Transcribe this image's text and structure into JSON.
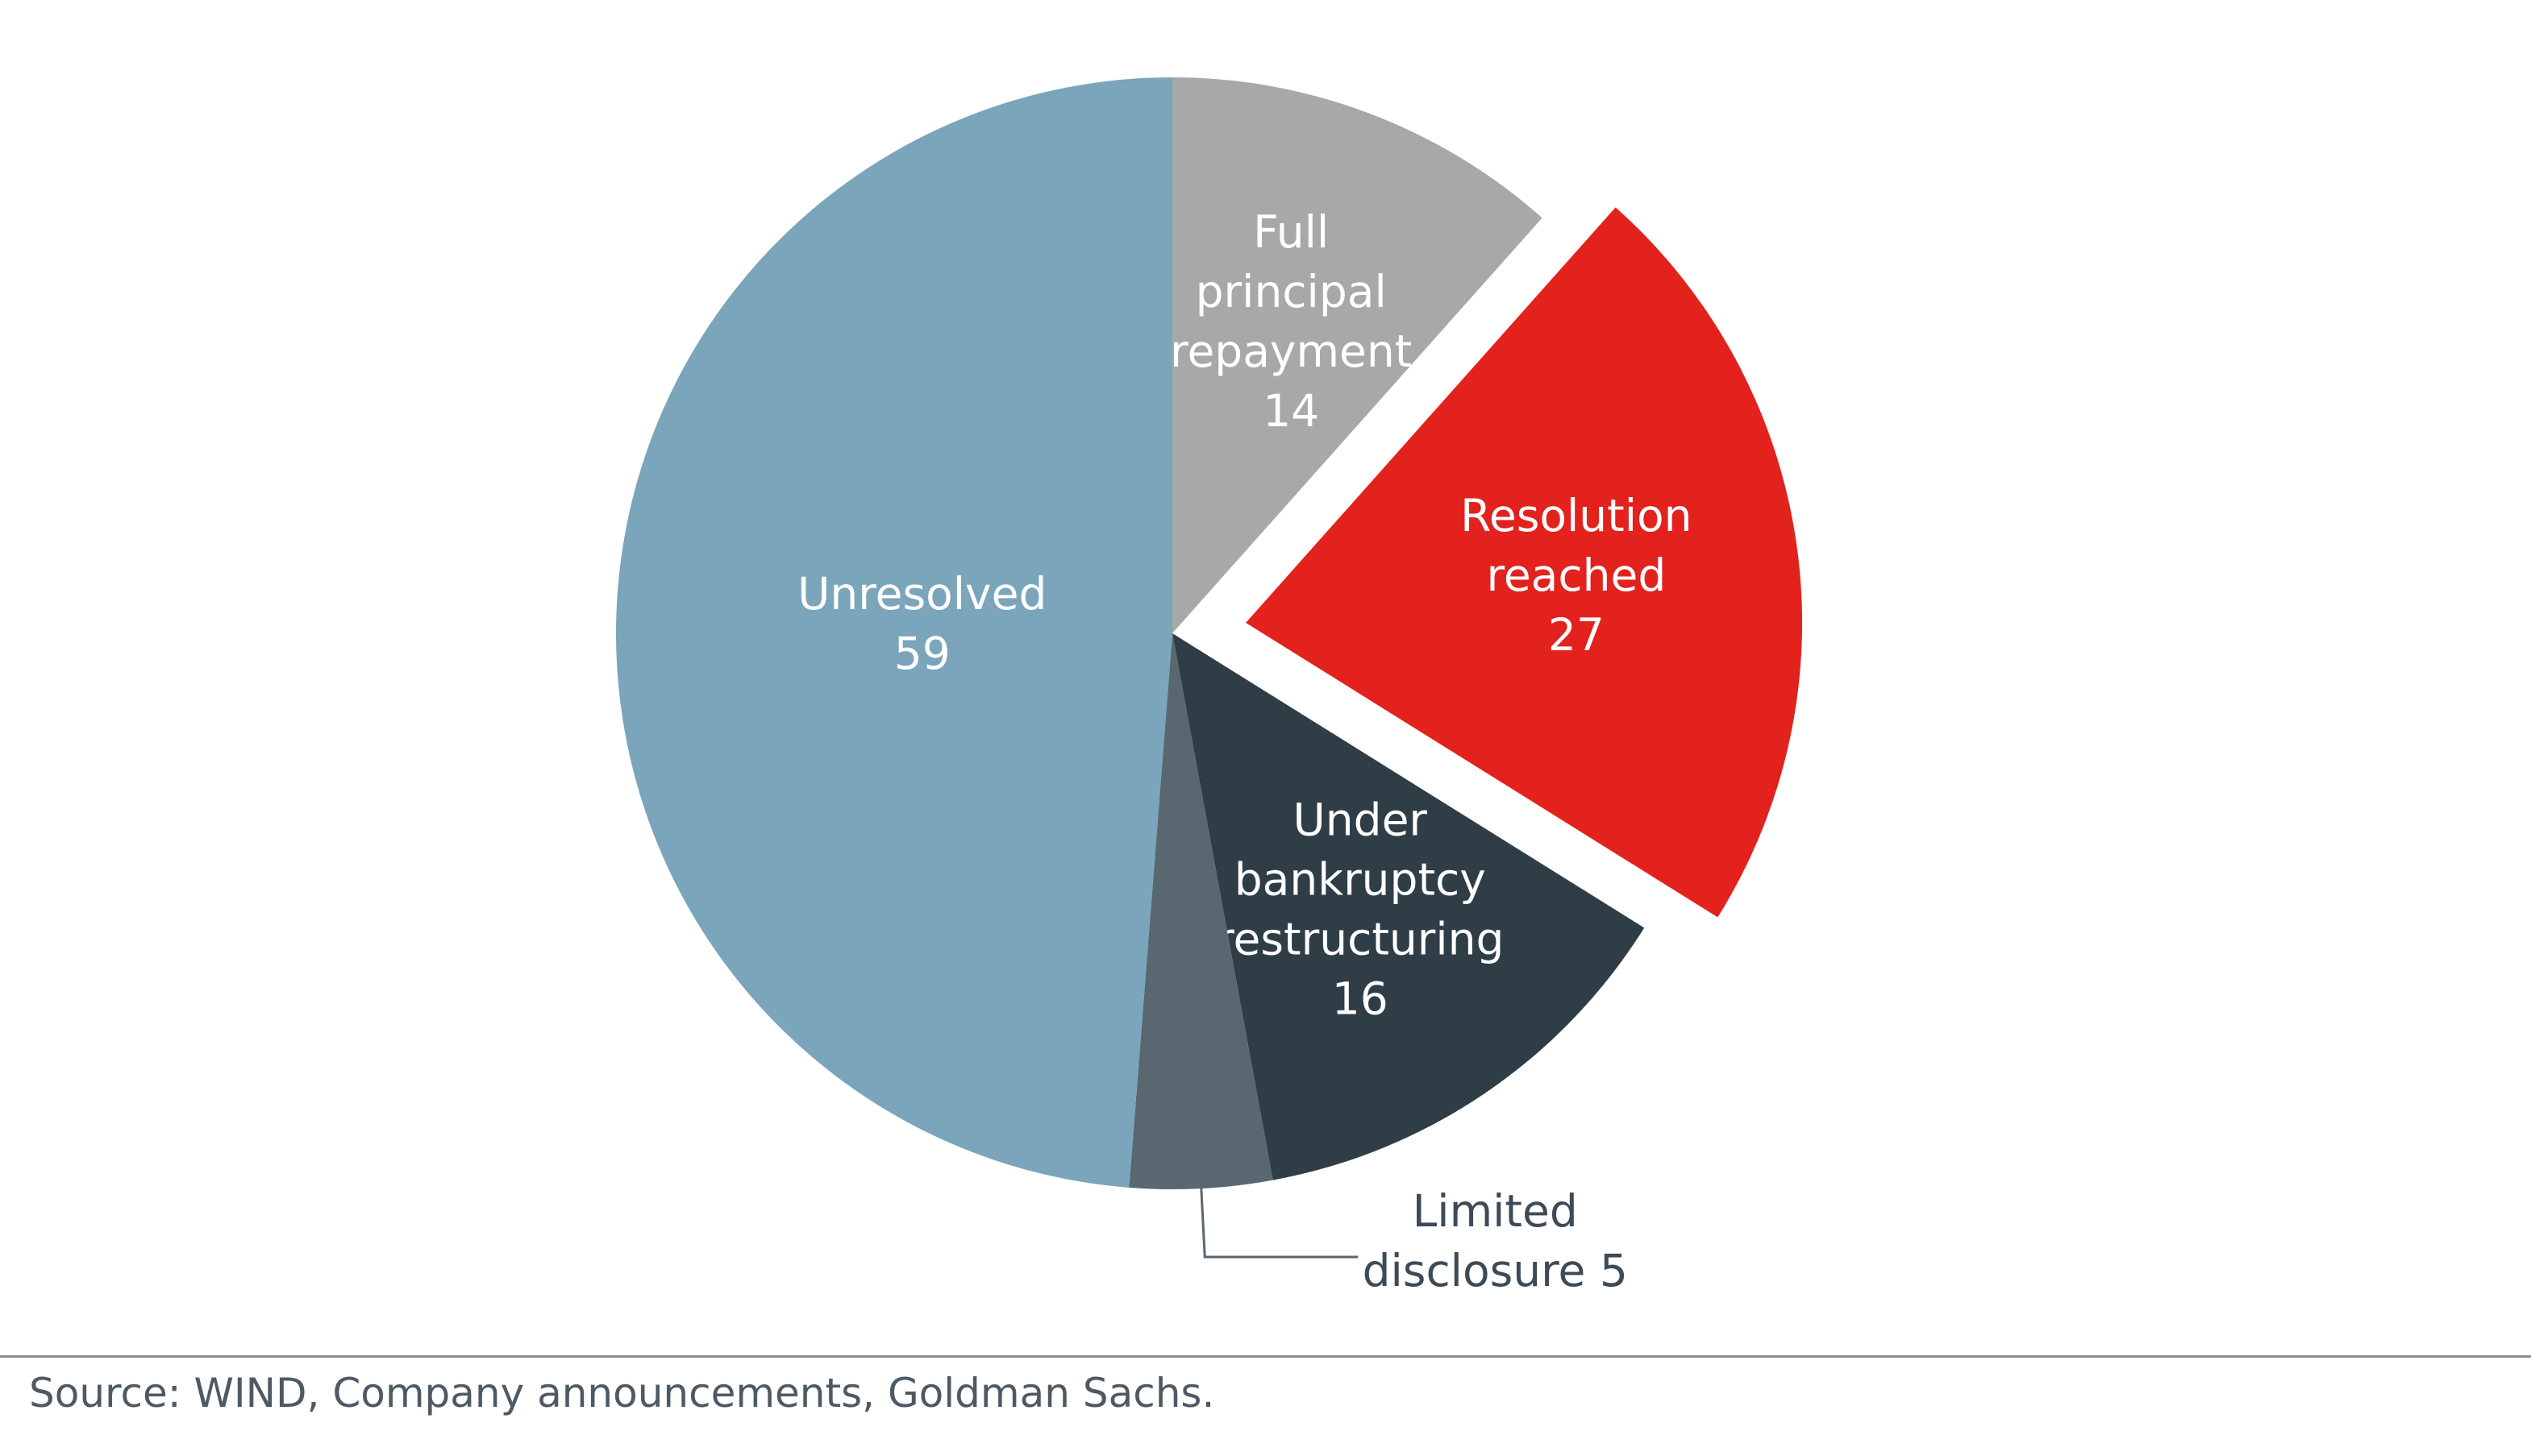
{
  "chart_data": {
    "type": "pie",
    "slices": [
      {
        "label_lines": [
          "Full",
          "principal",
          "repayment"
        ],
        "value": 14,
        "color": "#a7a8aa",
        "exploded": false
      },
      {
        "label_lines": [
          "Resolution",
          "reached"
        ],
        "value": 27,
        "color": "#e3211d",
        "exploded": true
      },
      {
        "label_lines": [
          "Under",
          "bankruptcy",
          "restructuring"
        ],
        "value": 16,
        "color": "#2f3d47",
        "exploded": false
      },
      {
        "label_lines": [
          "Limited",
          "disclosure 5"
        ],
        "value": 5,
        "color": "#596771",
        "exploded": false,
        "label_outside": true
      },
      {
        "label_lines": [
          "Unresolved"
        ],
        "value": 59,
        "color": "#7aa5ba",
        "exploded": false
      }
    ]
  },
  "source": "Source: WIND, Company announcements, Goldman Sachs."
}
